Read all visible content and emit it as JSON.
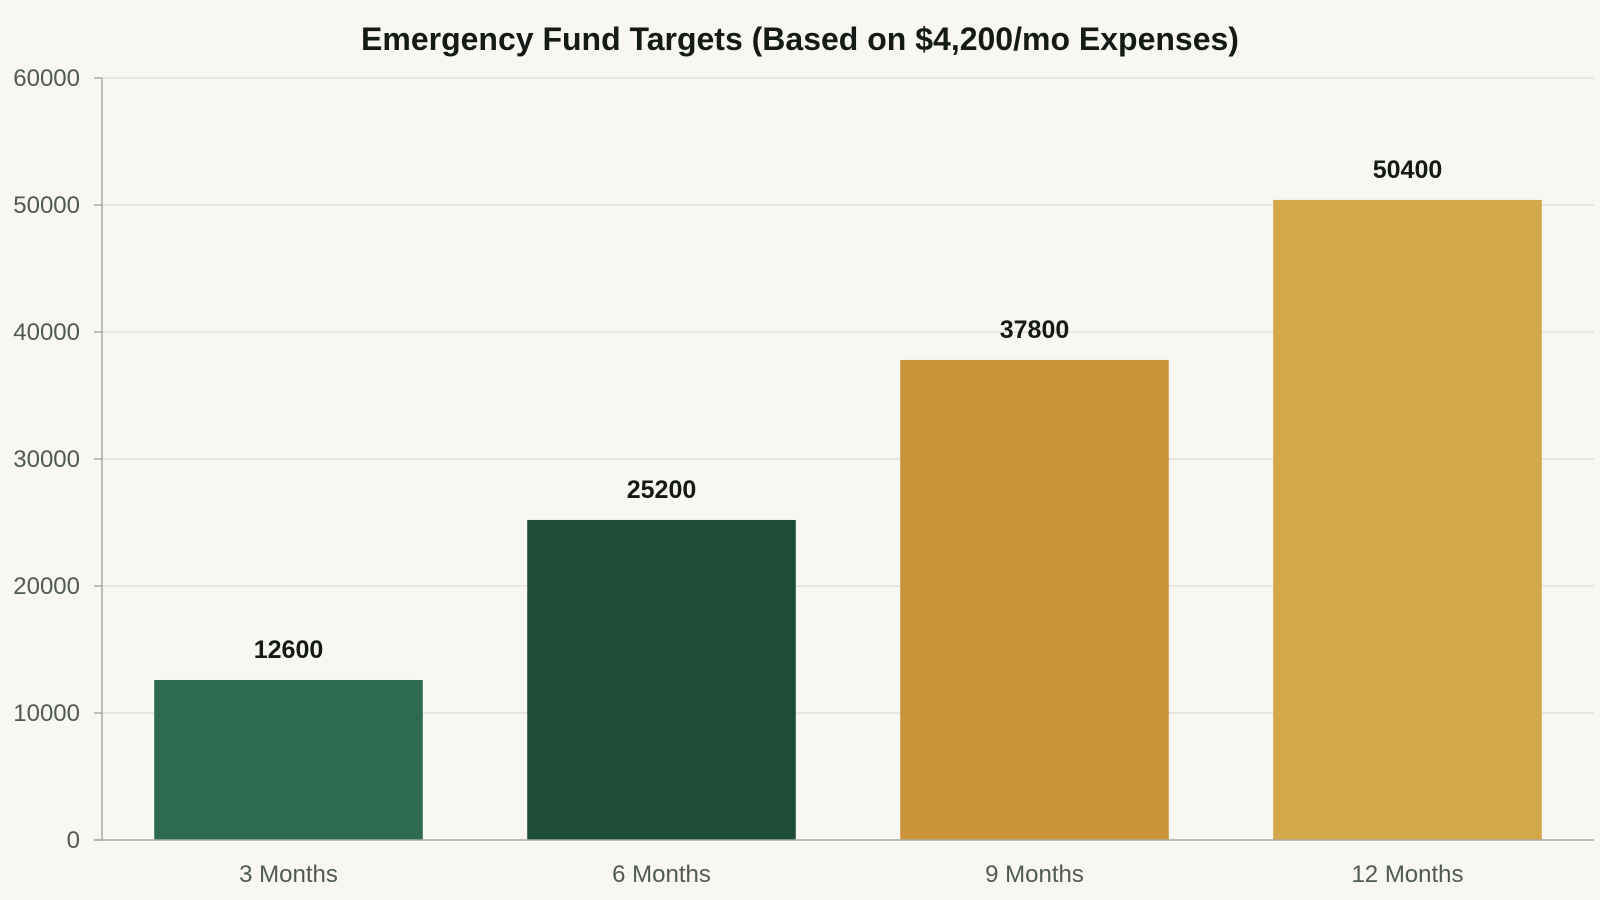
{
  "chart_data": {
    "type": "bar",
    "title": "Emergency Fund Targets (Based on $4,200/mo Expenses)",
    "xlabel": "",
    "ylabel": "",
    "categories": [
      "3 Months",
      "6 Months",
      "9 Months",
      "12 Months"
    ],
    "values": [
      12600,
      25200,
      37800,
      50400
    ],
    "value_labels": [
      "12600",
      "25200",
      "37800",
      "50400"
    ],
    "bar_colors": [
      "#2d6a50",
      "#1e4d37",
      "#c9943a",
      "#d4a74a"
    ],
    "ylim": [
      0,
      60000
    ],
    "yticks": [
      0,
      10000,
      20000,
      30000,
      40000,
      50000,
      60000
    ],
    "ytick_labels": [
      "0",
      "10000",
      "20000",
      "30000",
      "40000",
      "50000",
      "60000"
    ],
    "grid": true,
    "legend": "none"
  }
}
